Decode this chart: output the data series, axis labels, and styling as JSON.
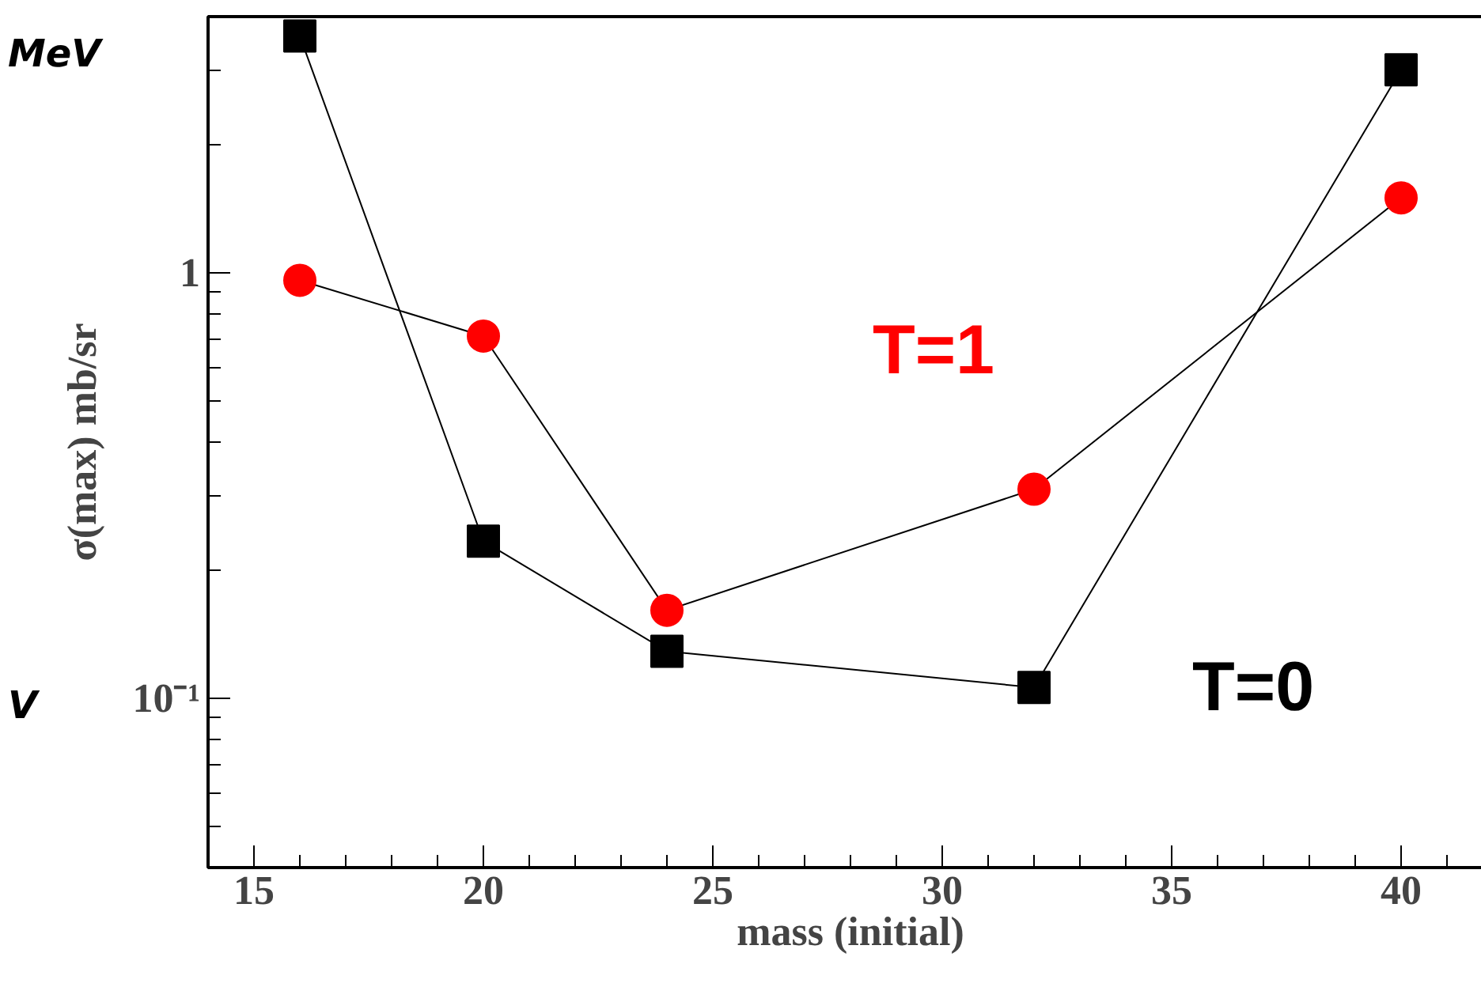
{
  "chart_data": {
    "type": "line",
    "xlabel": "mass (initial)",
    "ylabel": "σ(max) mb/sr",
    "x": [
      16,
      20,
      24,
      32,
      40
    ],
    "series": [
      {
        "name": "T=0",
        "color": "#000000",
        "marker": "square",
        "values": [
          3.6,
          0.234,
          0.129,
          0.106,
          3.0
        ]
      },
      {
        "name": "T=1",
        "color": "#ff0000",
        "marker": "circle",
        "values": [
          0.96,
          0.71,
          0.161,
          0.31,
          1.5
        ]
      }
    ],
    "log": "y",
    "xlim": [
      14,
      42
    ],
    "ylim": [
      0.04,
      4
    ],
    "xticks": [
      15,
      20,
      25,
      30,
      35,
      40
    ],
    "yticks": [
      {
        "value": 0.1,
        "label": "10⁻¹"
      },
      1
    ],
    "annotations": [
      "MeV",
      "V"
    ],
    "grid": false,
    "legend": false
  }
}
